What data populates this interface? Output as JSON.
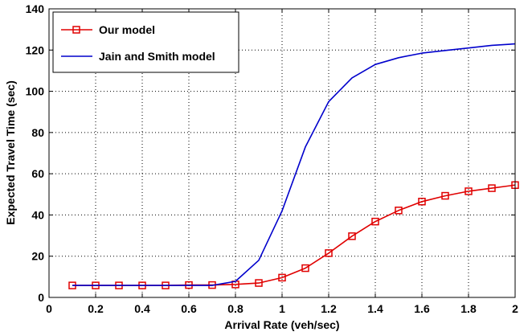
{
  "chart_data": {
    "type": "line",
    "xlabel": "Arrival Rate (veh/sec)",
    "ylabel": "Expected Travel Time (sec)",
    "xlim": [
      0,
      2
    ],
    "ylim": [
      0,
      140
    ],
    "x_ticks": [
      0,
      0.2,
      0.4,
      0.6,
      0.8,
      1,
      1.2,
      1.4,
      1.6,
      1.8,
      2
    ],
    "x_tick_labels": [
      "0",
      "0.2",
      "0.4",
      "0.6",
      "0.8",
      "1",
      "1.2",
      "1.4",
      "1.6",
      "1.8",
      "2"
    ],
    "y_ticks": [
      0,
      20,
      40,
      60,
      80,
      100,
      120,
      140
    ],
    "y_tick_labels": [
      "0",
      "20",
      "40",
      "60",
      "80",
      "100",
      "120",
      "140"
    ],
    "grid": true,
    "grid_style": "dotted",
    "legend_position": "top-left",
    "series": [
      {
        "name": "Our model",
        "color": "#e00000",
        "marker": "square",
        "x": [
          0.1,
          0.2,
          0.3,
          0.4,
          0.5,
          0.6,
          0.7,
          0.8,
          0.9,
          1.0,
          1.1,
          1.2,
          1.3,
          1.4,
          1.5,
          1.6,
          1.7,
          1.8,
          1.9,
          2.0
        ],
        "y": [
          5.8,
          5.8,
          5.8,
          5.8,
          5.8,
          6.0,
          6.0,
          6.3,
          7.0,
          9.6,
          14.2,
          21.5,
          29.7,
          36.8,
          42.2,
          46.5,
          49.3,
          51.5,
          53.0,
          54.5
        ]
      },
      {
        "name": "Jain and Smith model",
        "color": "#0000cc",
        "marker": "none",
        "x": [
          0.1,
          0.2,
          0.3,
          0.4,
          0.5,
          0.6,
          0.7,
          0.8,
          0.9,
          1.0,
          1.1,
          1.2,
          1.3,
          1.4,
          1.5,
          1.6,
          1.7,
          1.8,
          1.9,
          2.0
        ],
        "y": [
          5.8,
          5.8,
          5.8,
          5.8,
          5.8,
          5.8,
          5.8,
          7.8,
          18,
          42,
          73,
          95,
          106.5,
          113,
          116.3,
          118.5,
          119.8,
          121,
          122.3,
          123
        ]
      }
    ]
  }
}
